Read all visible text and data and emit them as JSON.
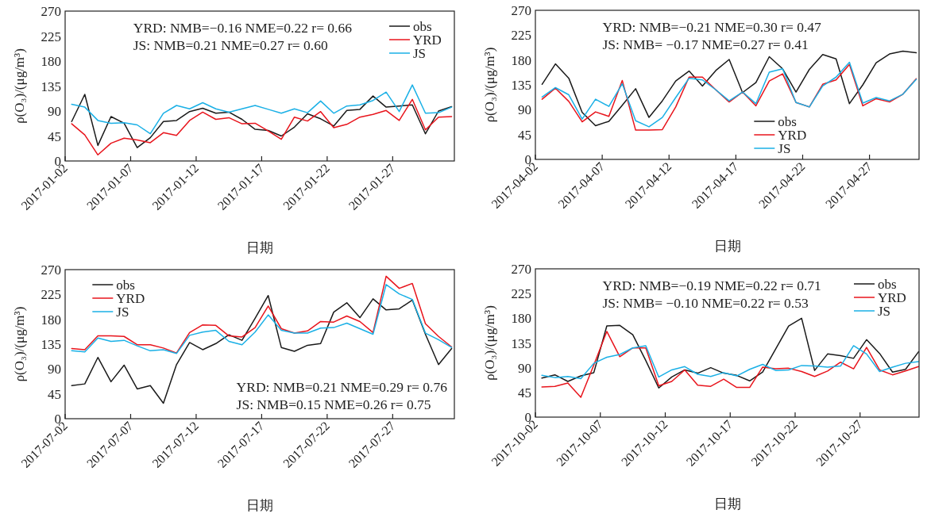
{
  "chart_data": [
    {
      "type": "line",
      "xlabel": "日期",
      "ylabel": "ρ(O₃)/(μg/m³)",
      "legend": "top right",
      "x": [
        "2017-01-02T12:00",
        "2017-01-03T12:00",
        "2017-01-04T12:00",
        "2017-01-05T12:00",
        "2017-01-06T12:00",
        "2017-01-07T12:00",
        "2017-01-08T12:00",
        "2017-01-09T12:00",
        "2017-01-10T12:00",
        "2017-01-11T12:00",
        "2017-01-12T12:00",
        "2017-01-13T12:00",
        "2017-01-14T12:00",
        "2017-01-15T12:00",
        "2017-01-16T12:00",
        "2017-01-17T12:00",
        "2017-01-18T12:00",
        "2017-01-19T12:00",
        "2017-01-20T12:00",
        "2017-01-21T12:00",
        "2017-01-22T12:00",
        "2017-01-23T12:00",
        "2017-01-24T12:00",
        "2017-01-25T12:00",
        "2017-01-26T12:00",
        "2017-01-27T12:00",
        "2017-01-28T12:00",
        "2017-01-29T12:00",
        "2017-01-30T12:00",
        "2017-01-31T12:00"
      ],
      "xlim": [
        "2017-01-02",
        "2017-01-31T17:00"
      ],
      "xticks": [
        "2017-01-02",
        "2017-01-07",
        "2017-01-12",
        "2017-01-17",
        "2017-01-22",
        "2017-01-27"
      ],
      "ylim": [
        0,
        270
      ],
      "yticks": [
        0,
        45,
        90,
        135,
        180,
        225,
        270
      ],
      "series": [
        {
          "name": "obs",
          "color": "#1a1a1a",
          "values": [
            71,
            120,
            28,
            80,
            68,
            24,
            42,
            71,
            73,
            89,
            95,
            86,
            88,
            75,
            57,
            55,
            45,
            61,
            85,
            76,
            63,
            91,
            93,
            117,
            97,
            99,
            101,
            49,
            90,
            98
          ]
        },
        {
          "name": "YRD",
          "color": "#e8141c",
          "values": [
            67,
            47,
            11,
            32,
            41,
            38,
            33,
            51,
            46,
            73,
            88,
            75,
            78,
            67,
            68,
            54,
            39,
            79,
            72,
            89,
            60,
            66,
            79,
            84,
            91,
            73,
            111,
            56,
            79,
            80
          ]
        },
        {
          "name": "JS",
          "color": "#1ab0e6",
          "values": [
            102,
            97,
            73,
            68,
            69,
            65,
            49,
            86,
            100,
            94,
            105,
            94,
            88,
            94,
            100,
            93,
            86,
            94,
            87,
            108,
            86,
            99,
            101,
            109,
            124,
            89,
            137,
            86,
            87,
            97
          ]
        }
      ],
      "annotations": [
        "YRD: NMB=−0.16 NME=0.22 r= 0.66",
        "JS: NMB=0.21 NME=0.27 r= 0.60"
      ]
    },
    {
      "type": "line",
      "xlabel": "日期",
      "ylabel": "ρ(O₃)/(μg/m³)",
      "legend": "bottom",
      "x": [
        "2017-04-02T12:00",
        "2017-04-03T12:00",
        "2017-04-04T12:00",
        "2017-04-05T12:00",
        "2017-04-06T12:00",
        "2017-04-07T12:00",
        "2017-04-08T12:00",
        "2017-04-09T12:00",
        "2017-04-10T12:00",
        "2017-04-11T12:00",
        "2017-04-12T12:00",
        "2017-04-13T12:00",
        "2017-04-14T12:00",
        "2017-04-15T12:00",
        "2017-04-16T12:00",
        "2017-04-17T12:00",
        "2017-04-18T12:00",
        "2017-04-19T12:00",
        "2017-04-20T12:00",
        "2017-04-21T12:00",
        "2017-04-22T12:00",
        "2017-04-23T12:00",
        "2017-04-24T12:00",
        "2017-04-25T12:00",
        "2017-04-26T12:00",
        "2017-04-27T12:00",
        "2017-04-28T12:00",
        "2017-04-29T12:00",
        "2017-04-30T12:00"
      ],
      "xlim": [
        "2017-04-02",
        "2017-04-30T17:00"
      ],
      "xticks": [
        "2017-04-02",
        "2017-04-07",
        "2017-04-12",
        "2017-04-17",
        "2017-04-22",
        "2017-04-27"
      ],
      "ylim": [
        0,
        270
      ],
      "yticks": [
        0,
        45,
        90,
        135,
        180,
        225,
        270
      ],
      "series": [
        {
          "name": "obs",
          "color": "#1a1a1a",
          "values": [
            136,
            173,
            147,
            85,
            61,
            69,
            98,
            128,
            76,
            106,
            142,
            160,
            133,
            161,
            181,
            121,
            139,
            186,
            164,
            122,
            163,
            190,
            182,
            101,
            135,
            175,
            191,
            196,
            193
          ]
        },
        {
          "name": "YRD",
          "color": "#e8141c",
          "values": [
            109,
            129,
            105,
            68,
            86,
            78,
            143,
            53,
            53,
            54,
            95,
            149,
            149,
            126,
            104,
            122,
            97,
            142,
            155,
            103,
            95,
            136,
            144,
            172,
            97,
            110,
            104,
            118,
            146
          ]
        },
        {
          "name": "JS",
          "color": "#1ab0e6",
          "values": [
            113,
            130,
            117,
            73,
            109,
            96,
            137,
            70,
            59,
            76,
            112,
            147,
            144,
            126,
            106,
            122,
            101,
            158,
            164,
            103,
            95,
            133,
            149,
            176,
            102,
            112,
            106,
            118,
            145
          ]
        }
      ],
      "annotations": [
        "YRD: NMB=−0.21 NME=0.30 r= 0.47",
        "JS: NMB= −0.17 NME=0.27 r= 0.41"
      ]
    },
    {
      "type": "line",
      "xlabel": "日期",
      "ylabel": "ρ(O₃)/(μg/m³)",
      "legend": "top left",
      "x": [
        "2017-07-02T12:00",
        "2017-07-03T12:00",
        "2017-07-04T12:00",
        "2017-07-05T12:00",
        "2017-07-06T12:00",
        "2017-07-07T12:00",
        "2017-07-08T12:00",
        "2017-07-09T12:00",
        "2017-07-10T12:00",
        "2017-07-11T12:00",
        "2017-07-12T12:00",
        "2017-07-13T12:00",
        "2017-07-14T12:00",
        "2017-07-15T12:00",
        "2017-07-16T12:00",
        "2017-07-17T12:00",
        "2017-07-18T12:00",
        "2017-07-19T12:00",
        "2017-07-20T12:00",
        "2017-07-21T12:00",
        "2017-07-22T12:00",
        "2017-07-23T12:00",
        "2017-07-24T12:00",
        "2017-07-25T12:00",
        "2017-07-26T12:00",
        "2017-07-27T12:00",
        "2017-07-28T12:00",
        "2017-07-29T12:00",
        "2017-07-30T12:00",
        "2017-07-31T12:00"
      ],
      "xlim": [
        "2017-07-02",
        "2017-07-31T17:00"
      ],
      "xticks": [
        "2017-07-02",
        "2017-07-07",
        "2017-07-12",
        "2017-07-17",
        "2017-07-22",
        "2017-07-27"
      ],
      "ylim": [
        0,
        270
      ],
      "yticks": [
        0,
        45,
        90,
        135,
        180,
        225,
        270
      ],
      "series": [
        {
          "name": "obs",
          "color": "#1a1a1a",
          "values": [
            60,
            63,
            111,
            67,
            97,
            54,
            60,
            28,
            98,
            138,
            125,
            136,
            152,
            142,
            182,
            223,
            129,
            122,
            133,
            136,
            193,
            210,
            183,
            217,
            197,
            199,
            215,
            153,
            98,
            127
          ]
        },
        {
          "name": "YRD",
          "color": "#e8141c",
          "values": [
            127,
            125,
            150,
            150,
            149,
            134,
            134,
            128,
            119,
            156,
            170,
            169,
            150,
            148,
            165,
            204,
            163,
            155,
            159,
            176,
            175,
            186,
            176,
            156,
            258,
            236,
            245,
            172,
            149,
            130
          ]
        },
        {
          "name": "JS",
          "color": "#1ab0e6",
          "values": [
            123,
            121,
            146,
            140,
            142,
            132,
            123,
            125,
            118,
            151,
            157,
            160,
            140,
            134,
            157,
            188,
            160,
            155,
            155,
            164,
            165,
            173,
            163,
            153,
            243,
            226,
            216,
            155,
            143,
            129
          ]
        }
      ],
      "annotations": [
        "YRD: NMB=0.21 NME=0.29 r= 0.76",
        "JS: NMB=0.15 NME=0.26 r= 0.75"
      ]
    },
    {
      "type": "line",
      "xlabel": "日期",
      "ylabel": "ρ(O₃)/(μg/m³)",
      "legend": "top right",
      "x": [
        "2017-10-02T12:00",
        "2017-10-03T12:00",
        "2017-10-04T12:00",
        "2017-10-05T12:00",
        "2017-10-06T12:00",
        "2017-10-07T12:00",
        "2017-10-08T12:00",
        "2017-10-09T12:00",
        "2017-10-10T12:00",
        "2017-10-11T12:00",
        "2017-10-12T12:00",
        "2017-10-13T12:00",
        "2017-10-14T12:00",
        "2017-10-15T12:00",
        "2017-10-16T12:00",
        "2017-10-17T12:00",
        "2017-10-18T12:00",
        "2017-10-19T12:00",
        "2017-10-20T12:00",
        "2017-10-21T12:00",
        "2017-10-22T12:00",
        "2017-10-23T12:00",
        "2017-10-24T12:00",
        "2017-10-25T12:00",
        "2017-10-26T12:00",
        "2017-10-27T12:00",
        "2017-10-28T12:00",
        "2017-10-29T12:00",
        "2017-10-30T12:00",
        "2017-10-31T12:00"
      ],
      "xlim": [
        "2017-10-02",
        "2017-10-31T13:00"
      ],
      "xticks": [
        "2017-10-02",
        "2017-10-07",
        "2017-10-12",
        "2017-10-17",
        "2017-10-22",
        "2017-10-27"
      ],
      "ylim": [
        0,
        270
      ],
      "yticks": [
        0,
        45,
        90,
        135,
        180,
        225,
        270
      ],
      "series": [
        {
          "name": "obs",
          "color": "#1a1a1a",
          "values": [
            71,
            77,
            65,
            75,
            81,
            166,
            167,
            150,
            103,
            53,
            73,
            86,
            80,
            90,
            80,
            76,
            66,
            82,
            124,
            166,
            180,
            85,
            115,
            112,
            107,
            141,
            116,
            82,
            87,
            119
          ]
        },
        {
          "name": "YRD",
          "color": "#e8141c",
          "values": [
            55,
            56,
            62,
            36,
            95,
            156,
            110,
            126,
            126,
            57,
            65,
            86,
            58,
            56,
            69,
            54,
            54,
            91,
            88,
            89,
            83,
            74,
            84,
            100,
            88,
            127,
            86,
            77,
            84,
            92
          ]
        },
        {
          "name": "JS",
          "color": "#1ab0e6",
          "values": [
            76,
            72,
            74,
            70,
            98,
            109,
            114,
            126,
            130,
            73,
            86,
            92,
            78,
            74,
            81,
            75,
            87,
            96,
            85,
            86,
            94,
            93,
            91,
            93,
            130,
            115,
            83,
            91,
            98,
            101
          ]
        }
      ],
      "annotations": [
        "YRD: NMB=−0.19 NME=0.22 r= 0.71",
        "JS: NMB= −0.10 NME=0.22 r= 0.53"
      ]
    }
  ]
}
